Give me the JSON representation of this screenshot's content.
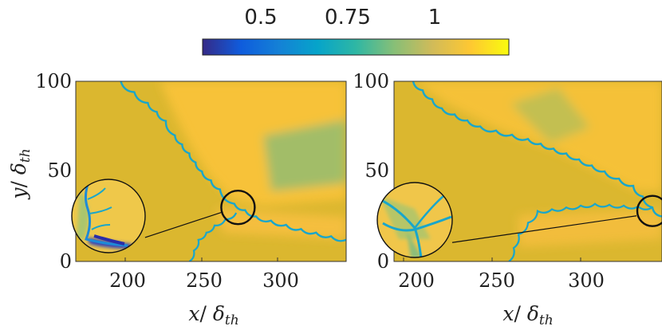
{
  "chart_data": [
    {
      "type": "heatmap",
      "panel": "left",
      "xlabel": {
        "var": "x",
        "sep": "/ ",
        "sym": "δ",
        "sub": "th"
      },
      "ylabel": {
        "var": "y",
        "sep": "/ ",
        "sym": "δ",
        "sub": "th"
      },
      "xlim": [
        175,
        325
      ],
      "ylim": [
        0,
        100
      ],
      "xticks": [
        200,
        250,
        300
      ],
      "yticks": [
        0,
        50,
        100
      ],
      "zoom_center": [
        265,
        30
      ],
      "front": [
        [
          200,
          100
        ],
        [
          215,
          88
        ],
        [
          225,
          78
        ],
        [
          230,
          70
        ],
        [
          238,
          60
        ],
        [
          245,
          50
        ],
        [
          255,
          40
        ],
        [
          263,
          32
        ],
        [
          275,
          25
        ],
        [
          300,
          18
        ],
        [
          325,
          12
        ]
      ],
      "lower_front": [
        [
          238,
          0
        ],
        [
          243,
          12
        ],
        [
          252,
          20
        ],
        [
          264,
          27
        ]
      ]
    },
    {
      "type": "heatmap",
      "panel": "right",
      "xlabel": {
        "var": "x",
        "sep": "/ ",
        "sym": "δ",
        "sub": "th"
      },
      "xlim": [
        195,
        335
      ],
      "ylim": [
        0,
        100
      ],
      "xticks": [
        200,
        250,
        300
      ],
      "yticks": [
        0,
        50,
        100
      ],
      "zoom_center": [
        330,
        28
      ],
      "front": [
        [
          205,
          100
        ],
        [
          220,
          85
        ],
        [
          240,
          75
        ],
        [
          265,
          68
        ],
        [
          285,
          60
        ],
        [
          305,
          50
        ],
        [
          320,
          42
        ],
        [
          330,
          30
        ],
        [
          335,
          25
        ]
      ],
      "lower_front": [
        [
          255,
          0
        ],
        [
          260,
          15
        ],
        [
          270,
          28
        ],
        [
          300,
          32
        ],
        [
          330,
          30
        ]
      ]
    }
  ],
  "colorbar": {
    "ticks": [
      {
        "value": 0.5,
        "label": "0.5"
      },
      {
        "value": 0.75,
        "label": "0.75"
      },
      {
        "value": 1,
        "label": "1"
      }
    ],
    "range": [
      0.3,
      1.2
    ],
    "colormap": "parula",
    "colors": [
      "#352a87",
      "#0f5cdd",
      "#1481d6",
      "#06a4ca",
      "#2eb7a4",
      "#87bf77",
      "#d1bb59",
      "#fec832",
      "#f9fb0e"
    ]
  }
}
